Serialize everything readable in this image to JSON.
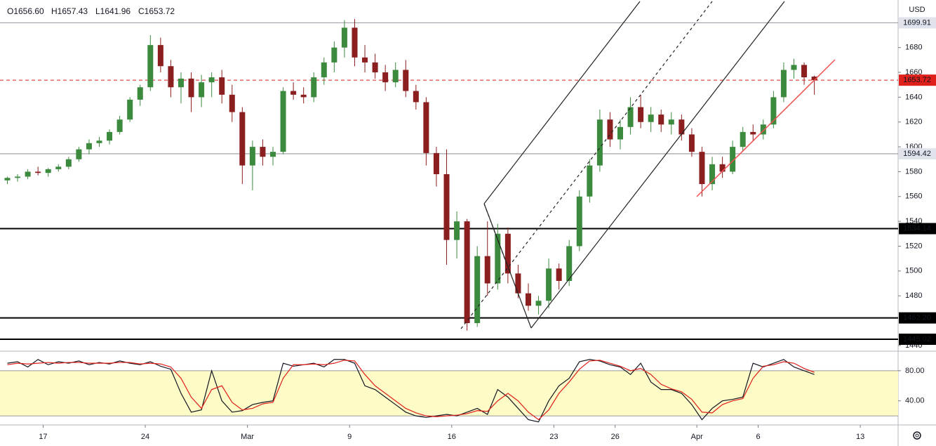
{
  "chart_data": {
    "type": "candlestick",
    "header": [
      "O1656.60",
      "H1657.43",
      "L1641.96",
      "C1653.72"
    ],
    "currency": "USD",
    "up_color": "#3b8a3e",
    "down_color": "#8b1e1e",
    "ylim": [
      1435.4,
      1718.3
    ],
    "yticks": [
      1440,
      1480,
      1500,
      1520,
      1540,
      1560,
      1580,
      1600,
      1620,
      1640,
      1660,
      1680
    ],
    "xlim": [
      -0.22,
      87.7
    ],
    "xticks": [
      {
        "value": 4,
        "label": "17"
      },
      {
        "value": 14,
        "label": "24"
      },
      {
        "value": 24,
        "label": "Mar"
      },
      {
        "value": 34,
        "label": "9"
      },
      {
        "value": 44,
        "label": "16"
      },
      {
        "value": 54,
        "label": "23"
      },
      {
        "value": 60,
        "label": "26"
      },
      {
        "value": 68,
        "label": "Apr"
      },
      {
        "value": 74,
        "label": "6"
      },
      {
        "value": 84,
        "label": "13"
      }
    ],
    "ohlc": [
      [
        1573,
        1576,
        1570,
        1575
      ],
      [
        1575,
        1578,
        1572,
        1576
      ],
      [
        1576,
        1582,
        1574,
        1580
      ],
      [
        1580,
        1584,
        1577,
        1579
      ],
      [
        1579,
        1583,
        1576,
        1582
      ],
      [
        1582,
        1586,
        1580,
        1584
      ],
      [
        1584,
        1592,
        1582,
        1590
      ],
      [
        1590,
        1600,
        1588,
        1598
      ],
      [
        1598,
        1606,
        1594,
        1603
      ],
      [
        1603,
        1608,
        1600,
        1605
      ],
      [
        1605,
        1614,
        1602,
        1612
      ],
      [
        1612,
        1625,
        1610,
        1622
      ],
      [
        1622,
        1640,
        1620,
        1638
      ],
      [
        1638,
        1650,
        1633,
        1648
      ],
      [
        1648,
        1690,
        1645,
        1682
      ],
      [
        1682,
        1688,
        1660,
        1665
      ],
      [
        1665,
        1670,
        1640,
        1648
      ],
      [
        1648,
        1660,
        1635,
        1655
      ],
      [
        1655,
        1660,
        1628,
        1640
      ],
      [
        1640,
        1658,
        1632,
        1652
      ],
      [
        1652,
        1660,
        1640,
        1656
      ],
      [
        1656,
        1662,
        1635,
        1642
      ],
      [
        1642,
        1650,
        1620,
        1628
      ],
      [
        1628,
        1632,
        1570,
        1585
      ],
      [
        1585,
        1605,
        1565,
        1600
      ],
      [
        1600,
        1606,
        1585,
        1592
      ],
      [
        1592,
        1600,
        1585,
        1596
      ],
      [
        1596,
        1648,
        1594,
        1645
      ],
      [
        1645,
        1652,
        1638,
        1642
      ],
      [
        1642,
        1648,
        1635,
        1640
      ],
      [
        1640,
        1660,
        1636,
        1656
      ],
      [
        1656,
        1672,
        1650,
        1668
      ],
      [
        1668,
        1685,
        1660,
        1680
      ],
      [
        1680,
        1702,
        1672,
        1696
      ],
      [
        1696,
        1703,
        1665,
        1672
      ],
      [
        1672,
        1682,
        1660,
        1668
      ],
      [
        1668,
        1675,
        1655,
        1660
      ],
      [
        1660,
        1666,
        1645,
        1652
      ],
      [
        1652,
        1668,
        1648,
        1662
      ],
      [
        1662,
        1670,
        1640,
        1645
      ],
      [
        1645,
        1650,
        1630,
        1636
      ],
      [
        1636,
        1640,
        1585,
        1595
      ],
      [
        1595,
        1600,
        1568,
        1578
      ],
      [
        1578,
        1598,
        1505,
        1525
      ],
      [
        1525,
        1548,
        1510,
        1540
      ],
      [
        1540,
        1542,
        1452,
        1458
      ],
      [
        1458,
        1520,
        1455,
        1512
      ],
      [
        1512,
        1540,
        1480,
        1490
      ],
      [
        1490,
        1538,
        1485,
        1530
      ],
      [
        1530,
        1535,
        1490,
        1498
      ],
      [
        1498,
        1505,
        1478,
        1482
      ],
      [
        1482,
        1490,
        1468,
        1472
      ],
      [
        1472,
        1480,
        1465,
        1476
      ],
      [
        1476,
        1510,
        1470,
        1502
      ],
      [
        1502,
        1506,
        1485,
        1492
      ],
      [
        1492,
        1525,
        1488,
        1520
      ],
      [
        1520,
        1565,
        1516,
        1560
      ],
      [
        1560,
        1590,
        1555,
        1585
      ],
      [
        1585,
        1630,
        1580,
        1622
      ],
      [
        1622,
        1628,
        1600,
        1606
      ],
      [
        1606,
        1622,
        1598,
        1616
      ],
      [
        1616,
        1640,
        1610,
        1632
      ],
      [
        1632,
        1642,
        1615,
        1620
      ],
      [
        1620,
        1632,
        1612,
        1626
      ],
      [
        1626,
        1630,
        1612,
        1618
      ],
      [
        1618,
        1628,
        1610,
        1622
      ],
      [
        1622,
        1626,
        1605,
        1610
      ],
      [
        1610,
        1615,
        1592,
        1596
      ],
      [
        1596,
        1600,
        1560,
        1570
      ],
      [
        1570,
        1592,
        1565,
        1586
      ],
      [
        1586,
        1592,
        1575,
        1580
      ],
      [
        1580,
        1605,
        1578,
        1600
      ],
      [
        1600,
        1616,
        1596,
        1612
      ],
      [
        1612,
        1618,
        1605,
        1610
      ],
      [
        1610,
        1622,
        1606,
        1618
      ],
      [
        1618,
        1645,
        1615,
        1640
      ],
      [
        1640,
        1668,
        1636,
        1662
      ],
      [
        1662,
        1671,
        1655,
        1666
      ],
      [
        1666,
        1668,
        1650,
        1656
      ],
      [
        1656.6,
        1657.43,
        1641.96,
        1653.72
      ]
    ],
    "levels": [
      {
        "value": 1699.91,
        "style": "thin"
      },
      {
        "value": 1594.42,
        "style": "thin"
      },
      {
        "value": 1534.14,
        "style": "thick"
      },
      {
        "value": 1462.2,
        "label": "1462.20",
        "style": "thick"
      },
      {
        "value": 1445.02,
        "style": "thick"
      },
      {
        "value": 1653.72,
        "style": "dashed"
      }
    ],
    "stoch": {
      "ylim": [
        8,
        106
      ],
      "band": [
        20,
        80
      ],
      "yticks": [
        {
          "value": 40,
          "label": "40.00"
        },
        {
          "value": 80,
          "label": "80.00"
        }
      ],
      "series": [
        {
          "color": "#131722",
          "values": [
            90,
            92,
            85,
            95,
            88,
            92,
            90,
            93,
            88,
            91,
            89,
            93,
            90,
            88,
            92,
            86,
            82,
            50,
            25,
            28,
            80,
            40,
            25,
            27,
            35,
            38,
            40,
            90,
            86,
            88,
            90,
            85,
            95,
            95,
            90,
            60,
            55,
            45,
            35,
            25,
            20,
            18,
            20,
            22,
            20,
            25,
            30,
            22,
            55,
            45,
            30,
            15,
            12,
            40,
            60,
            70,
            92,
            95,
            93,
            88,
            85,
            75,
            90,
            65,
            55,
            55,
            50,
            35,
            15,
            30,
            40,
            42,
            45,
            90,
            85,
            90,
            95,
            85,
            80,
            75
          ]
        },
        {
          "color": "#e0201b",
          "values": [
            88,
            90,
            89,
            90,
            91,
            90,
            91,
            91,
            90,
            90,
            90,
            91,
            91,
            89,
            90,
            89,
            85,
            70,
            45,
            30,
            55,
            60,
            38,
            28,
            30,
            36,
            38,
            70,
            88,
            88,
            89,
            88,
            90,
            94,
            93,
            75,
            60,
            50,
            40,
            30,
            24,
            20,
            19,
            20,
            21,
            23,
            27,
            26,
            40,
            50,
            40,
            25,
            15,
            28,
            50,
            65,
            82,
            93,
            94,
            90,
            86,
            80,
            83,
            75,
            62,
            56,
            52,
            42,
            25,
            24,
            35,
            40,
            43,
            70,
            86,
            88,
            92,
            90,
            83,
            78
          ]
        }
      ]
    }
  }
}
